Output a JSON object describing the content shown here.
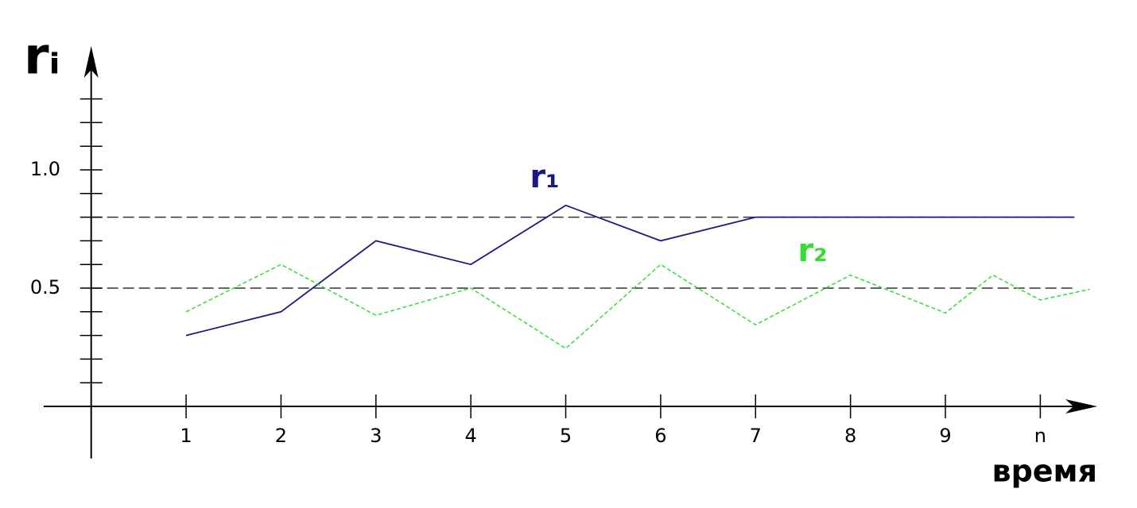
{
  "chart_data": {
    "type": "line",
    "y_label": "rᵢ",
    "x_label": "время",
    "xlim": [
      -0.5,
      10.6
    ],
    "ylim": [
      -0.2,
      1.5
    ],
    "xticks": [
      1,
      2,
      3,
      4,
      5,
      6,
      7,
      8,
      9,
      {
        "value": 10,
        "label": "n"
      }
    ],
    "yticks": [
      0.5,
      {
        "value": 1,
        "label": "1.0"
      }
    ],
    "minor_yticks": [
      0.1,
      0.2,
      0.3,
      0.4,
      0.6,
      0.7,
      0.8,
      0.9,
      1.1,
      1.2,
      1.3
    ],
    "reference_lines": [
      0.8,
      0.5
    ],
    "series": [
      {
        "name": "r₁",
        "color": "#1a1a80",
        "dashed": false,
        "x": [
          1,
          2,
          3,
          4,
          5,
          6,
          7,
          8,
          9,
          10,
          10.36
        ],
        "values": [
          0.3,
          0.4,
          0.7,
          0.6,
          0.85,
          0.7,
          0.8,
          0.8,
          0.8,
          0.8,
          0.8
        ]
      },
      {
        "name": "r₂",
        "color": "#33dd33",
        "dashed": true,
        "x": [
          1,
          2,
          3,
          4,
          5,
          6,
          7,
          8,
          9,
          9.5,
          10,
          10.52
        ],
        "values": [
          0.4,
          0.6,
          0.385,
          0.5,
          0.245,
          0.6,
          0.345,
          0.555,
          0.395,
          0.555,
          0.45,
          0.495
        ]
      }
    ]
  }
}
